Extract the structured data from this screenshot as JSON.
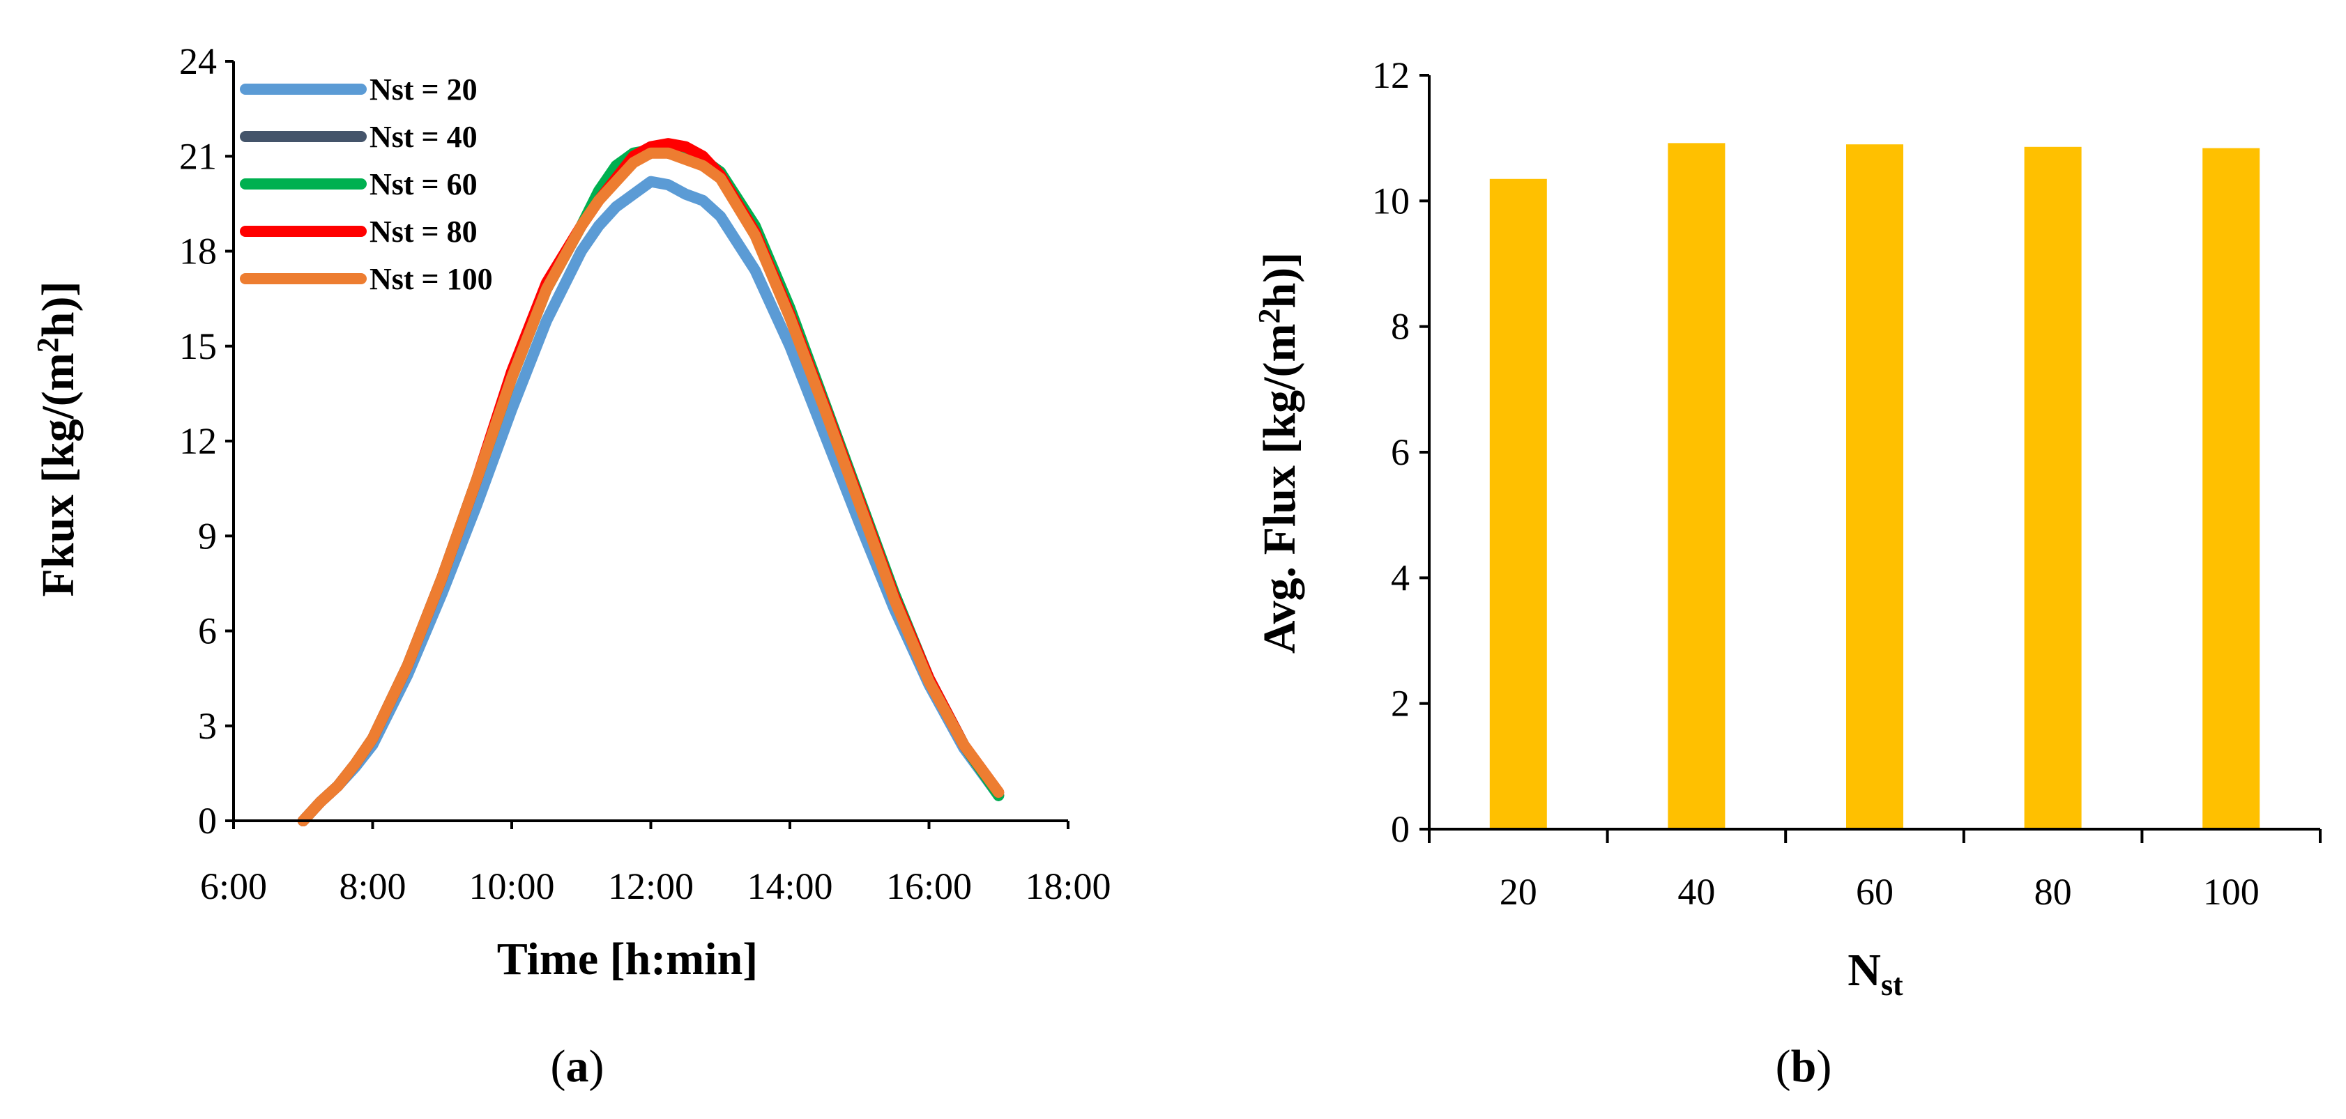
{
  "chart_data": [
    {
      "type": "line",
      "panel": "a",
      "caption_letter": "a",
      "xlabel": "Time [h:min]",
      "ylabel": "Fkux [kg/(m²h)]",
      "ylabel_parts": {
        "pre": "Fkux [kg/(m",
        "sup": "2",
        "post": "h)]"
      },
      "x_ticks": [
        6,
        8,
        10,
        12,
        14,
        16,
        18
      ],
      "x_tick_labels": [
        "6:00",
        "8:00",
        "10:00",
        "12:00",
        "14:00",
        "16:00",
        "18:00"
      ],
      "xlim": [
        6,
        18
      ],
      "ylim": [
        0,
        24
      ],
      "y_ticks": [
        0,
        3,
        6,
        9,
        12,
        15,
        18,
        21,
        24
      ],
      "x": [
        7.0,
        7.25,
        7.5,
        7.75,
        8.0,
        8.5,
        9.0,
        9.5,
        10.0,
        10.5,
        11.0,
        11.25,
        11.5,
        11.75,
        12.0,
        12.25,
        12.5,
        12.75,
        13.0,
        13.5,
        14.0,
        14.5,
        15.0,
        15.5,
        16.0,
        16.5,
        17.0
      ],
      "series": [
        {
          "name": "Nst = 20",
          "color": "#5b9bd5",
          "values": [
            0.0,
            0.6,
            1.1,
            1.7,
            2.4,
            4.6,
            7.2,
            10.0,
            13.0,
            15.8,
            18.0,
            18.8,
            19.4,
            19.8,
            20.2,
            20.1,
            19.8,
            19.6,
            19.1,
            17.4,
            15.0,
            12.2,
            9.4,
            6.7,
            4.3,
            2.3,
            0.8
          ]
        },
        {
          "name": "Nst = 40",
          "color": "#44546a",
          "values": [
            0.0,
            0.6,
            1.1,
            1.8,
            2.6,
            4.9,
            7.7,
            10.8,
            14.0,
            16.8,
            18.8,
            19.8,
            20.6,
            21.0,
            21.2,
            21.1,
            21.0,
            20.9,
            20.5,
            18.7,
            16.1,
            13.1,
            10.1,
            7.1,
            4.5,
            2.4,
            0.8
          ]
        },
        {
          "name": "Nst = 60",
          "color": "#00b050",
          "values": [
            0.0,
            0.6,
            1.1,
            1.8,
            2.6,
            4.9,
            7.7,
            10.8,
            14.0,
            16.8,
            18.8,
            19.9,
            20.7,
            21.1,
            21.2,
            21.1,
            21.0,
            20.9,
            20.5,
            18.8,
            16.2,
            13.2,
            10.2,
            7.2,
            4.5,
            2.4,
            0.8
          ]
        },
        {
          "name": "Nst = 80",
          "color": "#ff0000",
          "values": [
            0.0,
            0.6,
            1.1,
            1.8,
            2.6,
            4.9,
            7.7,
            10.8,
            14.2,
            17.0,
            18.8,
            19.6,
            20.3,
            21.0,
            21.3,
            21.4,
            21.3,
            21.0,
            20.4,
            18.6,
            16.0,
            13.1,
            10.1,
            7.1,
            4.5,
            2.4,
            0.9
          ]
        },
        {
          "name": "Nst = 100",
          "color": "#ed7d31",
          "values": [
            0.0,
            0.6,
            1.1,
            1.8,
            2.6,
            4.9,
            7.7,
            10.8,
            14.0,
            16.8,
            18.8,
            19.6,
            20.2,
            20.8,
            21.1,
            21.1,
            20.9,
            20.7,
            20.3,
            18.5,
            15.9,
            13.0,
            10.0,
            7.0,
            4.4,
            2.4,
            0.9
          ]
        }
      ]
    },
    {
      "type": "bar",
      "panel": "b",
      "caption_letter": "b",
      "xlabel": "Nst",
      "xlabel_parts": {
        "pre": "N",
        "sub": "st"
      },
      "ylabel": "Avg. Flux [kg/(m²h)]",
      "ylabel_parts": {
        "pre": "Avg. Flux [kg/(m",
        "sup": "2",
        "post": "h)]"
      },
      "categories": [
        "20",
        "40",
        "60",
        "80",
        "100"
      ],
      "values": [
        10.35,
        10.92,
        10.9,
        10.86,
        10.84
      ],
      "color": "#ffc000",
      "ylim": [
        0,
        12
      ],
      "y_ticks": [
        0,
        2,
        4,
        6,
        8,
        10,
        12
      ]
    }
  ]
}
